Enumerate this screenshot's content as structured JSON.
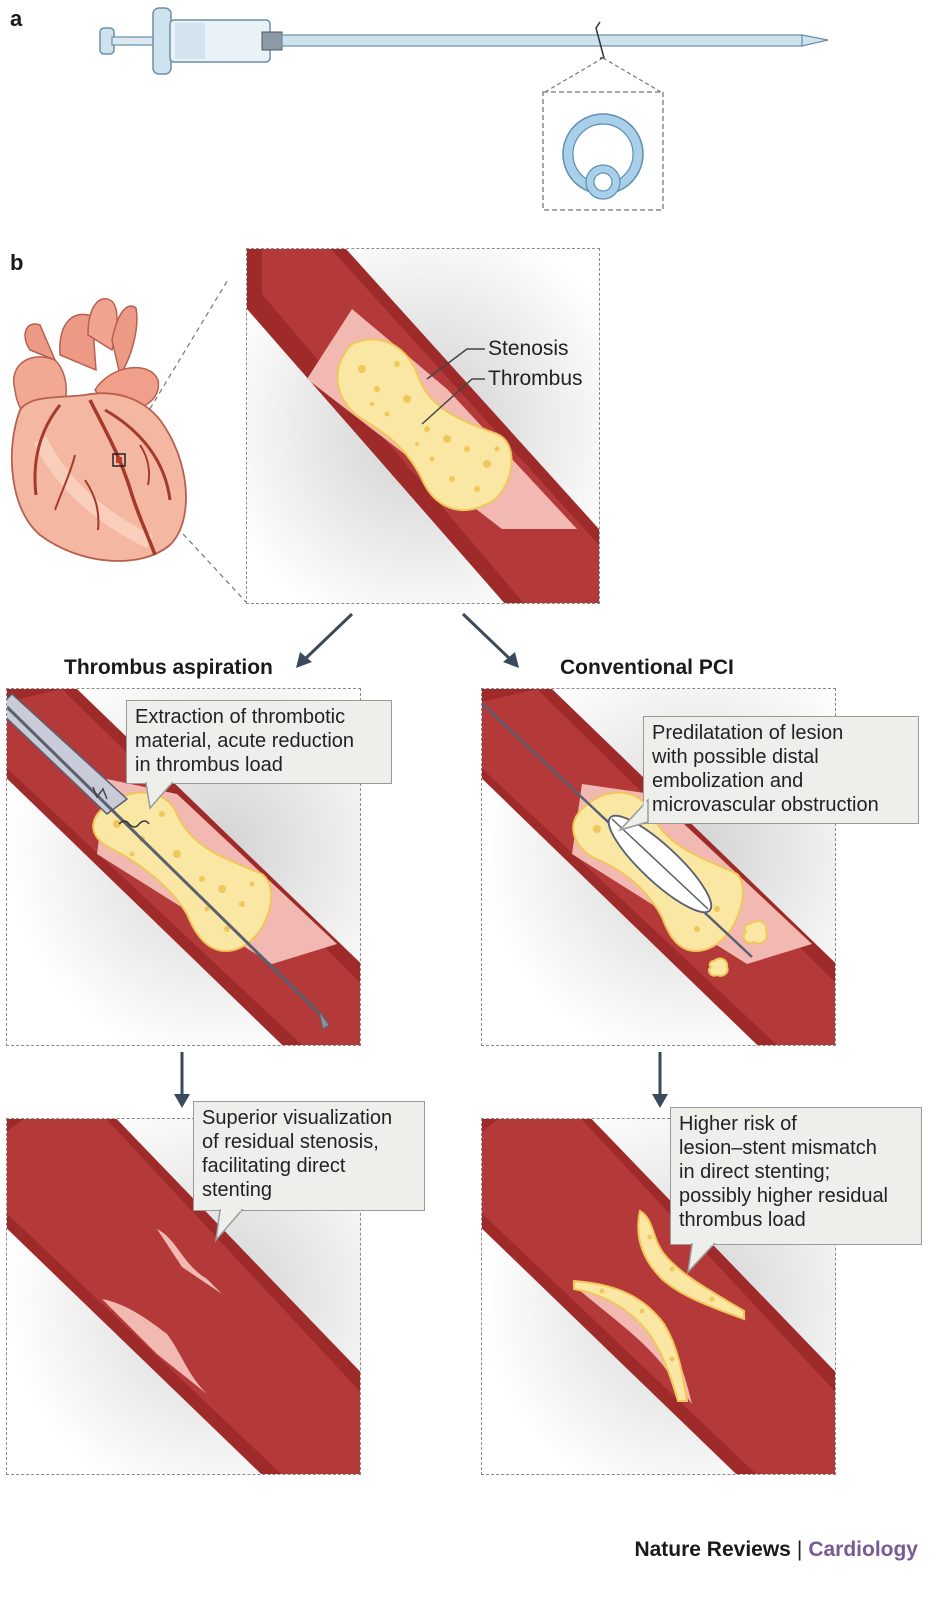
{
  "panels": {
    "a": "a",
    "b": "b"
  },
  "labels": {
    "stenosis": "Stenosis",
    "thrombus": "Thrombus"
  },
  "headings": {
    "left": "Thrombus aspiration",
    "right": "Conventional PCI"
  },
  "callouts": {
    "aspiration_step1": [
      "Extraction of thrombotic",
      "material, acute reduction",
      "in thrombus load"
    ],
    "pci_step1": [
      "Predilatation of lesion",
      "with possible distal",
      "embolization and",
      "microvascular obstruction"
    ],
    "aspiration_step2": [
      "Superior visualization",
      "of residual stenosis,",
      "facilitating direct",
      "stenting"
    ],
    "pci_step2": [
      "Higher risk of",
      "lesion–stent mismatch",
      "in direct stenting;",
      "possibly higher residual",
      "thrombus load"
    ]
  },
  "footer": {
    "publisher": "Nature Reviews",
    "separator": "|",
    "journal": "Cardiology"
  },
  "colors": {
    "vessel_wall": "#9e2a2a",
    "vessel_lumen": "#b43a3a",
    "intima": "#f2b9b3",
    "thrombus": "#fbe7a4",
    "thrombus_dot": "#f0c75a",
    "catheter": "#cfe3ef",
    "journal": "#7a5a92"
  }
}
